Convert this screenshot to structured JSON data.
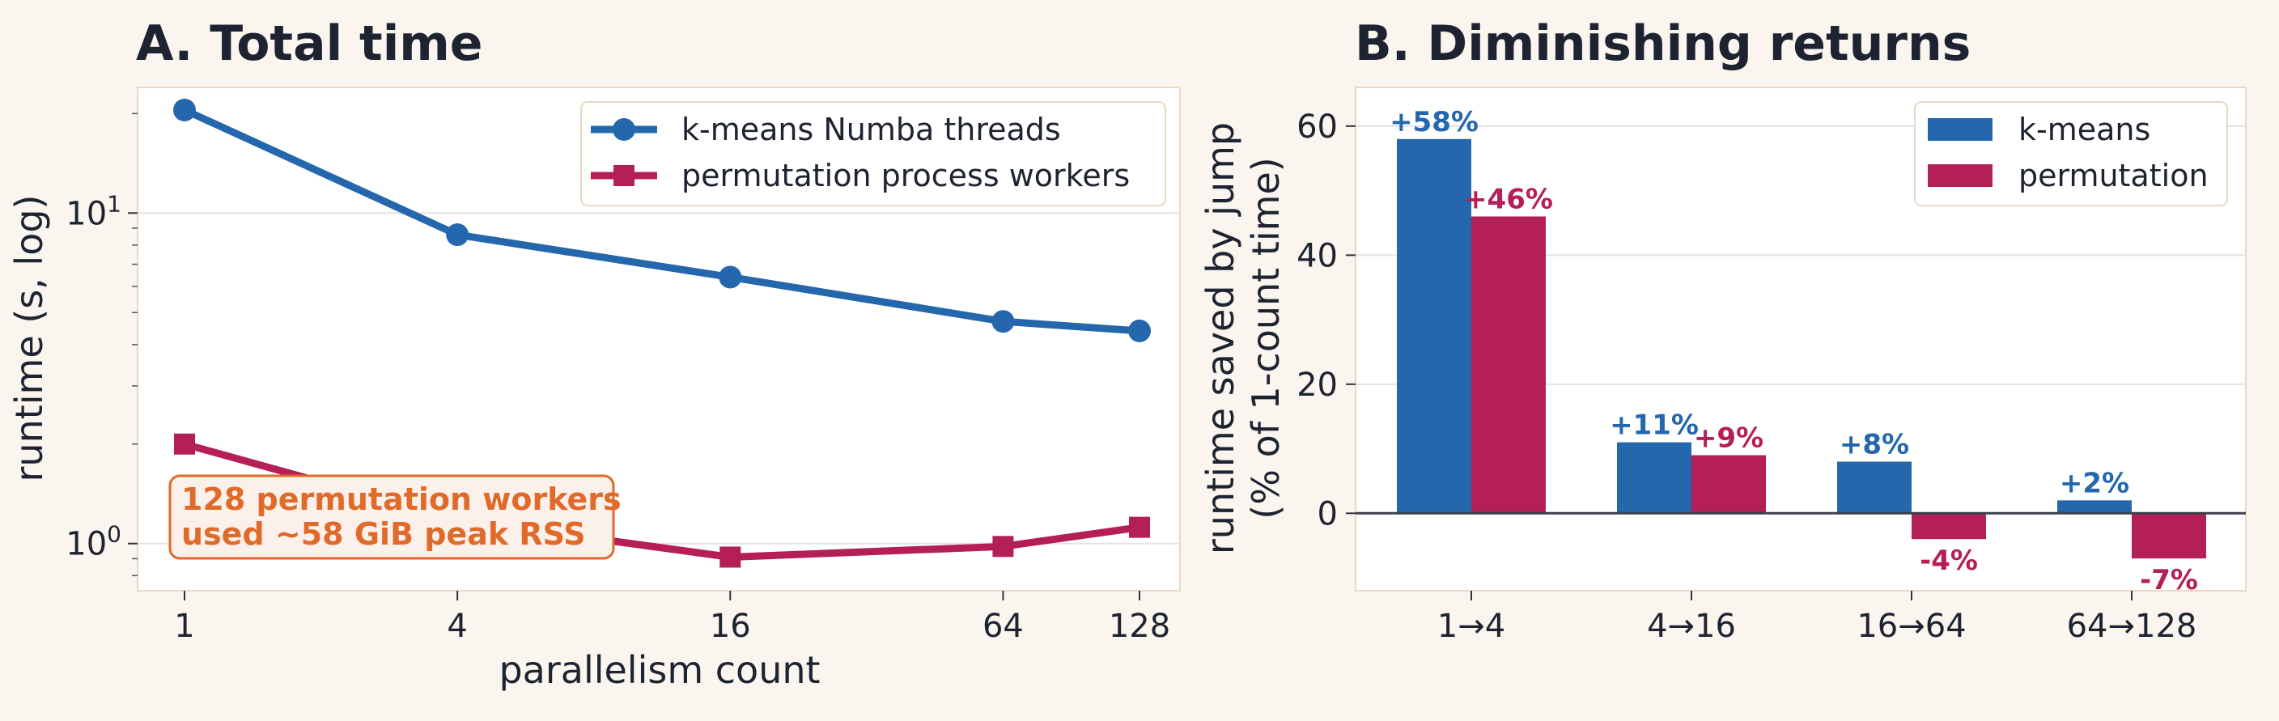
{
  "colors": {
    "kmeans": "#2467ad",
    "permutation": "#b51f57",
    "annotation": "#e06a2a",
    "background": "#faf5ee",
    "axes_face": "#ffffff",
    "text": "#1d2330",
    "grid": "#e3e3e3",
    "spine": "#e8d8c4"
  },
  "chart_data": [
    {
      "type": "line",
      "title": "A. Total time",
      "xlabel": "parallelism count",
      "ylabel": "runtime (s, log)",
      "x": [
        1,
        4,
        16,
        64,
        128
      ],
      "x_tick_labels": [
        "1",
        "4",
        "16",
        "64",
        "128"
      ],
      "xscale": "log2",
      "yscale": "log",
      "ylim": [
        0.72,
        24
      ],
      "y_tick_labels": [
        {
          "base": "10",
          "exp": "0",
          "value": 1
        },
        {
          "base": "10",
          "exp": "1",
          "value": 10
        }
      ],
      "grid": "y",
      "legend_position": "top-right",
      "series": [
        {
          "name": "k-means Numba threads",
          "marker": "circle",
          "values": [
            20.5,
            8.6,
            6.4,
            4.7,
            4.4
          ]
        },
        {
          "name": "permutation process workers",
          "marker": "square",
          "values": [
            2.0,
            1.18,
            0.91,
            0.98,
            1.12
          ]
        }
      ],
      "annotation": {
        "lines": [
          "128 permutation workers",
          "used ~58 GiB peak RSS"
        ],
        "position": "bottom-left"
      }
    },
    {
      "type": "bar",
      "title": "B. Diminishing returns",
      "xlabel": "",
      "ylabel": [
        "runtime saved by jump",
        "(% of 1-count time)"
      ],
      "categories": [
        "1→4",
        "4→16",
        "16→64",
        "64→128"
      ],
      "ylim": [
        -12,
        66
      ],
      "y_ticks": [
        0,
        20,
        40,
        60
      ],
      "grid": "y",
      "legend_position": "top-right",
      "series": [
        {
          "name": "k-means",
          "values": [
            58,
            11,
            8,
            2
          ],
          "labels": [
            "+58%",
            "+11%",
            "+8%",
            "+2%"
          ]
        },
        {
          "name": "permutation",
          "values": [
            46,
            9,
            -4,
            -7
          ],
          "labels": [
            "+46%",
            "+9%",
            "-4%",
            "-7%"
          ]
        }
      ]
    }
  ]
}
